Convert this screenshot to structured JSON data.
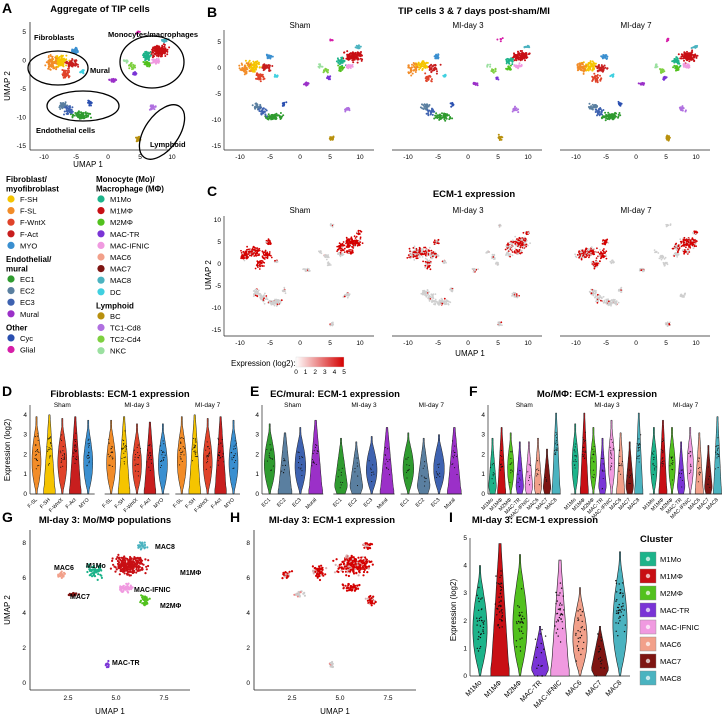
{
  "panels": {
    "A": {
      "letter": "A",
      "title": "Aggregate of TIP cells",
      "xlabel": "UMAP 1",
      "ylabel": "UMAP 2",
      "xticks": [
        "-10",
        "-5",
        "0",
        "5",
        "10"
      ],
      "yticks": [
        "5",
        "0",
        "-5",
        "-10",
        "-15"
      ],
      "groups": [
        "Fibroblasts",
        "Monocytes/macrophages",
        "Mural",
        "Endothelial cells",
        "Lymphoid"
      ]
    },
    "B": {
      "letter": "B",
      "title": "TIP cells 3 & 7 days post-sham/MI",
      "conditions": [
        "Sham",
        "MI-day 3",
        "MI-day 7"
      ],
      "xticks": [
        "-10",
        "-5",
        "0",
        "5",
        "10"
      ],
      "yticks": [
        "5",
        "0",
        "-5",
        "-10",
        "-15"
      ]
    },
    "C": {
      "letter": "C",
      "title": "ECM-1 expression",
      "conditions": [
        "Sham",
        "MI-day 3",
        "MI-day 7"
      ],
      "xlabel": "UMAP 1",
      "ylabel": "UMAP 2",
      "xticks": [
        "-10",
        "-5",
        "0",
        "5",
        "10"
      ],
      "yticks": [
        "10",
        "5",
        "0",
        "-5",
        "-10",
        "-15"
      ],
      "colorbar_label": "Expression (log2):",
      "colorbar_ticks": [
        "0",
        "1",
        "2",
        "3",
        "4",
        "5"
      ]
    },
    "D": {
      "letter": "D",
      "title": "Fibroblasts: ECM-1 expression",
      "ylabel": "Expression (log2)",
      "conditions": [
        "Sham",
        "MI-day 3",
        "MI-day 7"
      ],
      "categories": [
        "F-SL",
        "F-SH",
        "F-WntX",
        "F-Act",
        "MYO"
      ],
      "yticks": [
        "0",
        "1",
        "2",
        "3",
        "4"
      ]
    },
    "E": {
      "letter": "E",
      "title": "EC/mural: ECM-1 expression",
      "conditions": [
        "Sham",
        "MI-day 3",
        "MI-day 7"
      ],
      "categories": [
        "EC1",
        "EC2",
        "EC3",
        "Mural"
      ],
      "yticks": [
        "0",
        "1",
        "2",
        "3",
        "4"
      ]
    },
    "F": {
      "letter": "F",
      "title": "Mo/MΦ: ECM-1 expression",
      "conditions": [
        "Sham",
        "MI-day 3",
        "MI-day 7"
      ],
      "categories": [
        "M1Mo",
        "M1MΦ",
        "M2MΦ",
        "MAC-TR",
        "MAC-IFNIC",
        "MAC6",
        "MAC7",
        "MAC8"
      ],
      "yticks": [
        "0",
        "1",
        "2",
        "3",
        "4"
      ]
    },
    "G": {
      "letter": "G",
      "title": "MI-day 3: Mo/MΦ populations",
      "xlabel": "UMAP 1",
      "ylabel": "UMAP 2",
      "xticks": [
        "2.5",
        "5.0",
        "7.5"
      ],
      "yticks": [
        "8",
        "6",
        "4",
        "2",
        "0"
      ],
      "cluster_labels": [
        "MAC8",
        "M1MΦ",
        "MAC6",
        "M1Mo",
        "MAC7",
        "MAC-IFNIC",
        "M2MΦ",
        "MAC-TR"
      ]
    },
    "H": {
      "letter": "H",
      "title": "MI-day 3: ECM-1 expression",
      "xlabel": "UMAP 1",
      "xticks": [
        "2.5",
        "5.0",
        "7.5"
      ],
      "yticks": [
        "8",
        "6",
        "4",
        "2",
        "0"
      ]
    },
    "I": {
      "letter": "I",
      "title": "MI-day 3: ECM-1 expression",
      "ylabel": "Expression (log2)",
      "yticks": [
        "0",
        "1",
        "2",
        "3",
        "4",
        "5"
      ],
      "legend_title": "Cluster"
    }
  },
  "legend": {
    "groups": [
      {
        "header": [
          "Fibroblast/",
          "myofibroblast"
        ],
        "items": [
          {
            "label": "F-SH",
            "color": "#f5c400"
          },
          {
            "label": "F-SL",
            "color": "#f28c28"
          },
          {
            "label": "F-WntX",
            "color": "#e0432a"
          },
          {
            "label": "F-Act",
            "color": "#c81e1e"
          },
          {
            "label": "MYO",
            "color": "#3a8fd0"
          }
        ]
      },
      {
        "header": [
          "Endothelial/",
          "mural"
        ],
        "items": [
          {
            "label": "EC1",
            "color": "#2f9b2f"
          },
          {
            "label": "EC2",
            "color": "#5a7fa0"
          },
          {
            "label": "EC3",
            "color": "#3e62b0"
          },
          {
            "label": "Mural",
            "color": "#9b30c8"
          }
        ]
      },
      {
        "header": [
          "Other"
        ],
        "items": [
          {
            "label": "Cyc",
            "color": "#2a4fb0"
          },
          {
            "label": "Glial",
            "color": "#d61ea8"
          }
        ]
      },
      {
        "header": [
          "Monocyte (Mo)/",
          "Macrophage (MΦ)"
        ],
        "items": [
          {
            "label": "M1Mo",
            "color": "#1db38a"
          },
          {
            "label": "M1MΦ",
            "color": "#c80f14"
          },
          {
            "label": "M2MΦ",
            "color": "#52c11e"
          },
          {
            "label": "MAC-TR",
            "color": "#7a34d6"
          },
          {
            "label": "MAC-IFNIC",
            "color": "#f09ae0"
          },
          {
            "label": "MAC6",
            "color": "#f2a08a"
          },
          {
            "label": "MAC7",
            "color": "#7e1512"
          },
          {
            "label": "MAC8",
            "color": "#4bb3c0"
          },
          {
            "label": "DC",
            "color": "#40d0e0"
          }
        ]
      },
      {
        "header": [
          "Lymphoid"
        ],
        "items": [
          {
            "label": "BC",
            "color": "#b8900e"
          },
          {
            "label": "TC1-Cd8",
            "color": "#b070e0"
          },
          {
            "label": "TC2-Cd4",
            "color": "#7ed040"
          },
          {
            "label": "NKC",
            "color": "#9be0a0"
          }
        ]
      }
    ]
  },
  "cluster_legend": [
    {
      "label": "M1Mo",
      "color": "#1db38a"
    },
    {
      "label": "M1MΦ",
      "color": "#c80f14"
    },
    {
      "label": "M2MΦ",
      "color": "#52c11e"
    },
    {
      "label": "MAC-TR",
      "color": "#7a34d6"
    },
    {
      "label": "MAC-IFNIC",
      "color": "#f09ae0"
    },
    {
      "label": "MAC6",
      "color": "#f2a08a"
    },
    {
      "label": "MAC7",
      "color": "#7e1512"
    },
    {
      "label": "MAC8",
      "color": "#4bb3c0"
    }
  ],
  "chart_data": [
    {
      "type": "violin",
      "panel": "D",
      "title": "Fibroblasts: ECM-1 expression",
      "ylabel": "Expression (log2)",
      "ylim": [
        0,
        4.5
      ],
      "categories": [
        "F-SL",
        "F-SH",
        "F-WntX",
        "F-Act",
        "MYO"
      ],
      "series": [
        {
          "name": "Sham",
          "medians": [
            2.4,
            2.5,
            2.3,
            2.4,
            2.2
          ]
        },
        {
          "name": "MI-day 3",
          "medians": [
            2.2,
            2.4,
            2.0,
            2.1,
            2.0
          ]
        },
        {
          "name": "MI-day 7",
          "medians": [
            2.4,
            2.5,
            2.3,
            2.4,
            2.2
          ]
        }
      ]
    },
    {
      "type": "violin",
      "panel": "E",
      "title": "EC/mural: ECM-1 expression",
      "ylim": [
        0,
        4.5
      ],
      "categories": [
        "EC1",
        "EC2",
        "EC3",
        "Mural"
      ],
      "series": [
        {
          "name": "Sham",
          "medians": [
            2.0,
            1.5,
            1.8,
            2.2
          ]
        },
        {
          "name": "MI-day 3",
          "medians": [
            1.2,
            1.0,
            1.3,
            1.8
          ]
        },
        {
          "name": "MI-day 7",
          "medians": [
            1.5,
            1.2,
            1.4,
            1.8
          ]
        }
      ]
    },
    {
      "type": "violin",
      "panel": "F",
      "title": "Mo/MΦ: ECM-1 expression",
      "ylim": [
        0,
        4.5
      ],
      "categories": [
        "M1Mo",
        "M1MΦ",
        "M2MΦ",
        "MAC-TR",
        "MAC-IFNIC",
        "MAC6",
        "MAC7",
        "MAC8"
      ],
      "series": [
        {
          "name": "Sham",
          "medians": [
            1.2,
            1.8,
            1.5,
            1.0,
            1.0,
            1.2,
            0.6,
            2.6
          ]
        },
        {
          "name": "MI-day 3",
          "medians": [
            2.0,
            2.6,
            1.8,
            1.2,
            2.2,
            1.5,
            1.0,
            2.6
          ]
        },
        {
          "name": "MI-day 7",
          "medians": [
            1.8,
            2.2,
            1.8,
            1.0,
            1.8,
            1.5,
            0.8,
            2.4
          ]
        }
      ]
    },
    {
      "type": "violin",
      "panel": "I",
      "title": "MI-day 3: ECM-1 expression",
      "ylabel": "Expression (log2)",
      "ylim": [
        0,
        5
      ],
      "categories": [
        "M1Mo",
        "M1MΦ",
        "M2MΦ",
        "MAC-TR",
        "MAC-IFNIC",
        "MAC6",
        "MAC7",
        "MAC8"
      ],
      "max": [
        4.0,
        4.8,
        4.4,
        1.8,
        4.2,
        3.2,
        1.8,
        4.5
      ],
      "medians": [
        2.0,
        2.6,
        1.8,
        0.8,
        2.2,
        1.5,
        0.8,
        2.6
      ]
    }
  ]
}
